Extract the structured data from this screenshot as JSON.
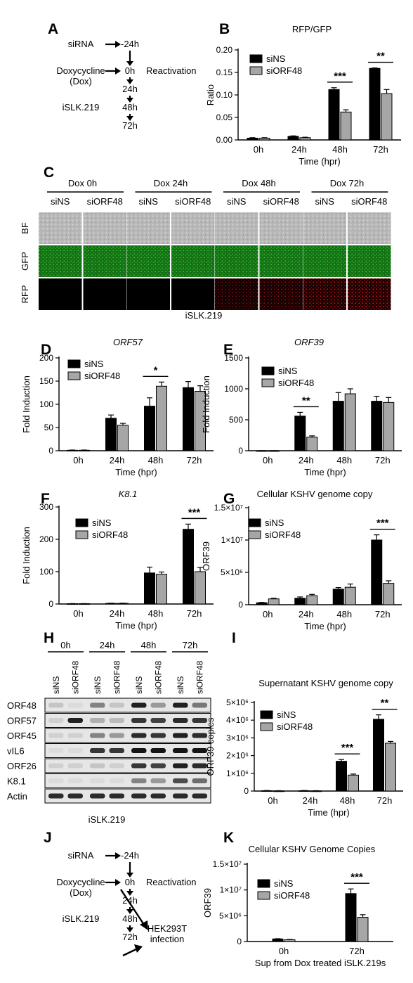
{
  "colors": {
    "siNS": "#000000",
    "siORF48": "#a6a6a6",
    "gfp": "#1f8a1f",
    "rfp": "#b0151d",
    "bf": "#bdbdbd"
  },
  "panelA": {
    "label": "A",
    "timeline": [
      {
        "left": "siRNA",
        "time": "-24h"
      },
      {
        "left": "Doxycycline\n(Dox)",
        "time": "0h",
        "right": "Reactivation"
      },
      {
        "left": "",
        "time": "24h"
      },
      {
        "left": "iSLK.219",
        "time": "48h"
      },
      {
        "left": "",
        "time": "72h"
      }
    ]
  },
  "panelC": {
    "label": "C",
    "groups": [
      "Dox 0h",
      "Dox 24h",
      "Dox 48h",
      "Dox 72h"
    ],
    "conditions": [
      "siNS",
      "siORF48"
    ],
    "rows": [
      "BF",
      "GFP",
      "RFP"
    ],
    "rfp_signal": [
      0,
      0,
      0,
      0,
      0.6,
      0.7,
      0.9,
      1.0
    ],
    "caption": "iSLK.219"
  },
  "panelH": {
    "label": "H",
    "times": [
      "0h",
      "24h",
      "48h",
      "72h"
    ],
    "lanes": [
      "siNS",
      "siORF48"
    ],
    "blots": [
      {
        "name": "ORF48",
        "levels": [
          0.15,
          0.05,
          0.45,
          0.15,
          0.9,
          0.35,
          0.9,
          0.5
        ]
      },
      {
        "name": "ORF57",
        "levels": [
          0.1,
          0.9,
          0.25,
          0.2,
          0.8,
          0.75,
          0.85,
          0.8
        ]
      },
      {
        "name": "ORF45",
        "levels": [
          0.1,
          0.1,
          0.45,
          0.35,
          0.85,
          0.8,
          0.9,
          0.85
        ]
      },
      {
        "name": "vIL6",
        "levels": [
          0.05,
          0.05,
          0.8,
          0.8,
          0.95,
          0.95,
          0.95,
          0.95
        ]
      },
      {
        "name": "ORF26",
        "levels": [
          0.1,
          0.1,
          0.15,
          0.1,
          0.8,
          0.75,
          0.9,
          0.85
        ]
      },
      {
        "name": "K8.1",
        "levels": [
          0.05,
          0.05,
          0.05,
          0.05,
          0.45,
          0.35,
          0.7,
          0.55
        ]
      },
      {
        "name": "Actin",
        "levels": [
          0.85,
          0.85,
          0.85,
          0.85,
          0.85,
          0.85,
          0.85,
          0.85
        ]
      }
    ],
    "caption": "iSLK.219"
  },
  "panelJ": {
    "label": "J",
    "timeline": [
      {
        "left": "siRNA",
        "time": "-24h"
      },
      {
        "left": "Doxycycline\n(Dox)",
        "time": "0h",
        "right": "Reactivation"
      },
      {
        "left": "",
        "time": "24h"
      },
      {
        "left": "iSLK.219",
        "time": "48h"
      },
      {
        "left": "",
        "time": "72h"
      }
    ],
    "target": "HEK293T\ninfection"
  },
  "chart_data": [
    {
      "panel": "B",
      "type": "bar",
      "title": "RFP/GFP",
      "categories": [
        "0h",
        "24h",
        "48h",
        "72h"
      ],
      "series": [
        {
          "name": "siNS",
          "values": [
            0.004,
            0.008,
            0.112,
            0.159
          ],
          "errors": [
            0.001,
            0.001,
            0.004,
            0.001
          ]
        },
        {
          "name": "siORF48",
          "values": [
            0.004,
            0.005,
            0.062,
            0.103
          ],
          "errors": [
            0.001,
            0.001,
            0.005,
            0.009
          ]
        }
      ],
      "xlabel": "Time (hpr)",
      "ylabel": "Ratio",
      "ylim": [
        0,
        0.2
      ],
      "yticks": [
        0.0,
        0.05,
        0.1,
        0.15,
        0.2
      ],
      "ytick_labels": [
        "0.00",
        "0.05",
        "0.10",
        "0.15",
        "0.20"
      ],
      "significance": [
        {
          "category": "48h",
          "label": "***"
        },
        {
          "category": "72h",
          "label": "**"
        }
      ],
      "legend": "top-left"
    },
    {
      "panel": "D",
      "type": "bar",
      "title": "ORF57",
      "title_italic": true,
      "categories": [
        "0h",
        "24h",
        "48h",
        "72h"
      ],
      "series": [
        {
          "name": "siNS",
          "values": [
            1,
            70,
            96,
            136
          ],
          "errors": [
            0.5,
            7,
            18,
            13
          ]
        },
        {
          "name": "siORF48",
          "values": [
            1,
            55,
            139,
            128
          ],
          "errors": [
            0.5,
            4,
            9,
            12
          ]
        }
      ],
      "xlabel": "Time (hpr)",
      "ylabel": "Fold Induction",
      "ylim": [
        0,
        200
      ],
      "yticks": [
        0,
        50,
        100,
        150,
        200
      ],
      "ytick_labels": [
        "0",
        "50",
        "100",
        "150",
        "200"
      ],
      "significance": [
        {
          "category": "48h",
          "label": "*"
        }
      ],
      "legend": "top-left"
    },
    {
      "panel": "E",
      "type": "bar",
      "title": "ORF39",
      "title_italic": true,
      "categories": [
        "0h",
        "24h",
        "48h",
        "72h"
      ],
      "series": [
        {
          "name": "siNS",
          "values": [
            1,
            560,
            800,
            800
          ],
          "errors": [
            0.5,
            60,
            140,
            80
          ]
        },
        {
          "name": "siORF48",
          "values": [
            1,
            220,
            920,
            780
          ],
          "errors": [
            0.5,
            20,
            80,
            80
          ]
        }
      ],
      "xlabel": "Time (hpr)",
      "ylabel": "Fold Induction",
      "ylim": [
        0,
        1500
      ],
      "yticks": [
        0,
        500,
        1000,
        1500
      ],
      "ytick_labels": [
        "0",
        "500",
        "1000",
        "1500"
      ],
      "significance": [
        {
          "category": "24h",
          "label": "**"
        }
      ],
      "legend": "top-left"
    },
    {
      "panel": "F",
      "type": "bar",
      "title": "K8.1",
      "title_italic": true,
      "categories": [
        "0h",
        "24h",
        "48h",
        "72h"
      ],
      "series": [
        {
          "name": "siNS",
          "values": [
            1,
            2,
            96,
            231
          ],
          "errors": [
            0.3,
            0.5,
            18,
            16
          ]
        },
        {
          "name": "siORF48",
          "values": [
            1,
            2,
            92,
            100
          ],
          "errors": [
            0.3,
            0.5,
            7,
            13
          ]
        }
      ],
      "xlabel": "Time (hpr)",
      "ylabel": "Fold Induction",
      "ylim": [
        0,
        300
      ],
      "yticks": [
        0,
        100,
        200,
        300
      ],
      "ytick_labels": [
        "0",
        "100",
        "200",
        "300"
      ],
      "significance": [
        {
          "category": "72h",
          "label": "***"
        }
      ],
      "legend": "top-left"
    },
    {
      "panel": "G",
      "type": "bar",
      "title": "Cellular KSHV genome copy",
      "categories": [
        "0h",
        "24h",
        "48h",
        "72h"
      ],
      "series": [
        {
          "name": "siNS",
          "values": [
            300000.0,
            1000000.0,
            2400000.0,
            10000000.0
          ],
          "errors": [
            50000.0,
            200000.0,
            250000.0,
            800000.0
          ]
        },
        {
          "name": "siORF48",
          "values": [
            900000.0,
            1400000.0,
            2700000.0,
            3300000.0
          ],
          "errors": [
            100000.0,
            200000.0,
            500000.0,
            400000.0
          ]
        }
      ],
      "xlabel": "Time (hpr)",
      "ylabel": "ORF39",
      "ylim": [
        0,
        15000000.0
      ],
      "yticks": [
        0,
        5000000.0,
        10000000.0,
        15000000.0
      ],
      "ytick_labels": [
        "0",
        "5×10⁶",
        "1×10⁷",
        "1.5×10⁷"
      ],
      "significance": [
        {
          "category": "72h",
          "label": "***"
        }
      ],
      "legend": "top-left"
    },
    {
      "panel": "I",
      "type": "bar",
      "title": "Supernatant KSHV genome copy",
      "categories": [
        "0h",
        "24h",
        "48h",
        "72h"
      ],
      "series": [
        {
          "name": "siNS",
          "values": [
            20000.0,
            20000.0,
            1680000.0,
            4050000.0
          ],
          "errors": [
            10000.0,
            10000.0,
            100000.0,
            250000.0
          ]
        },
        {
          "name": "siORF48",
          "values": [
            10000.0,
            10000.0,
            900000.0,
            2700000.0
          ],
          "errors": [
            10000.0,
            10000.0,
            60000.0,
            100000.0
          ]
        }
      ],
      "xlabel": "Time (hpr)",
      "ylabel": "ORF39 copies",
      "ylim": [
        0,
        5000000.0
      ],
      "yticks": [
        0,
        1000000.0,
        2000000.0,
        3000000.0,
        4000000.0,
        5000000.0
      ],
      "ytick_labels": [
        "0",
        "1×10⁶",
        "2×10⁶",
        "3×10⁶",
        "4×10⁶",
        "5×10⁶"
      ],
      "significance": [
        {
          "category": "48h",
          "label": "***"
        },
        {
          "category": "72h",
          "label": "**"
        }
      ],
      "legend": "top-left"
    },
    {
      "panel": "K",
      "type": "bar",
      "title": "Cellular KSHV Genome Copies",
      "categories": [
        "0h",
        "72h"
      ],
      "series": [
        {
          "name": "siNS",
          "values": [
            500000.0,
            9300000.0
          ],
          "errors": [
            50000.0,
            900000.0
          ]
        },
        {
          "name": "siORF48",
          "values": [
            350000.0,
            4700000.0
          ],
          "errors": [
            50000.0,
            500000.0
          ]
        }
      ],
      "xlabel": "Sup from Dox treated iSLK.219s",
      "ylabel": "ORF39",
      "ylim": [
        0,
        15000000.0
      ],
      "yticks": [
        0,
        5000000.0,
        10000000.0,
        15000000.0
      ],
      "ytick_labels": [
        "0",
        "5×10⁶",
        "1×10⁷",
        "1.5×10⁷"
      ],
      "significance": [
        {
          "category": "72h",
          "label": "***"
        }
      ],
      "legend": "top-left"
    }
  ]
}
